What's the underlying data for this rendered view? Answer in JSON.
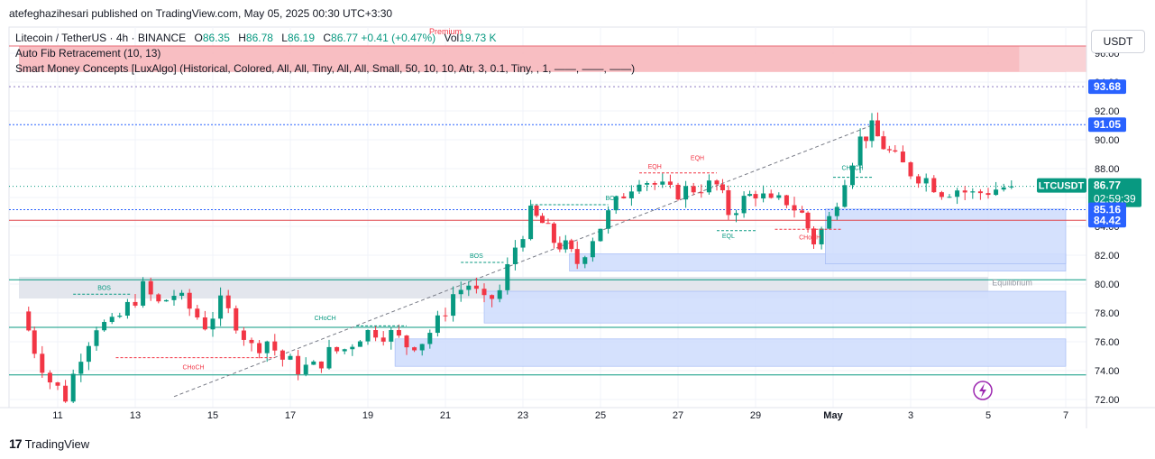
{
  "publisher": "atefeghazihesari published on TradingView.com, May 05, 2025 00:30 UTC+3:30",
  "symbol": {
    "name": "Litecoin / TetherUS · 4h · BINANCE",
    "o_label": "O",
    "o": "86.35",
    "h_label": "H",
    "h": "86.78",
    "l_label": "L",
    "l": "86.19",
    "c_label": "C",
    "c": "86.77",
    "change": "+0.41 (+0.47%)",
    "vol_label": "Vol",
    "vol": "19.73 K"
  },
  "indicators": {
    "fib": "Auto Fib Retracement (10, 13)",
    "smc": "Smart Money Concepts [LuxAlgo] (Historical, Colored, All, All, Tiny, All, All, Small, 50, 10, 10, Atr, 3, 0.1, Tiny, , 1, ——, ——, ——)"
  },
  "premium_label": "Premium",
  "currency": "USDT",
  "footer": "TradingView",
  "colors": {
    "up": "#089981",
    "down": "#f23645",
    "premium_zone": "#f7b7bb",
    "demand_zone": "#d0defd",
    "equilibrium_zone": "#e0e3eb",
    "blue_label": "#2962ff"
  },
  "chart_data": {
    "type": "candlestick",
    "x_axis": {
      "ticks": [
        "11",
        "13",
        "15",
        "17",
        "19",
        "21",
        "23",
        "25",
        "27",
        "29",
        "May",
        "3",
        "5",
        "7"
      ],
      "range": [
        "Apr 10",
        "May 7"
      ]
    },
    "y_axis": {
      "range": [
        72,
        96
      ],
      "ticks": [
        "72.00",
        "74.00",
        "76.00",
        "78.00",
        "80.00",
        "82.00",
        "84.00",
        "86.00",
        "88.00",
        "90.00",
        "92.00",
        "94.00",
        "96.00"
      ],
      "price_labels": [
        {
          "name": "fib-top",
          "value": "93.68"
        },
        {
          "name": "fib-high",
          "value": "91.05"
        },
        {
          "name": "last-price",
          "value": "86.77",
          "symbol": "LTCUSDT",
          "countdown": "02:59:39"
        },
        {
          "name": "level-a",
          "value": "85.16"
        },
        {
          "name": "level-b",
          "value": "84.42"
        }
      ]
    },
    "labels": [
      "BOS",
      "BOS",
      "BOS",
      "CHoCH",
      "CHoCH",
      "CHoCH",
      "CHoCH",
      "EQH",
      "EQH",
      "EQL",
      "Equilibrium"
    ],
    "zones": [
      {
        "kind": "premium",
        "from": "Apr 10",
        "to": "May 7",
        "low": 94.7,
        "high": 96.5
      },
      {
        "kind": "equilibrium",
        "from": "Apr 10",
        "to": "May 5",
        "low": 79.0,
        "high": 80.5
      },
      {
        "kind": "demand",
        "from": "Apr 19.7",
        "to": "May 7",
        "low": 74.3,
        "high": 76.2
      },
      {
        "kind": "demand",
        "from": "Apr 22",
        "to": "May 7",
        "low": 77.3,
        "high": 79.5
      },
      {
        "kind": "demand",
        "from": "Apr 24.2",
        "to": "May 7",
        "low": 80.9,
        "high": 82.1
      },
      {
        "kind": "demand",
        "from": "Apr 30.8",
        "to": "May 7",
        "low": 81.4,
        "high": 85.2
      }
    ],
    "path": [
      [
        10.1,
        78.1
      ],
      [
        10.4,
        75.5
      ],
      [
        10.8,
        73.3
      ],
      [
        11.2,
        72.2
      ],
      [
        11.6,
        75.2
      ],
      [
        12.0,
        77.2
      ],
      [
        12.4,
        77.1
      ],
      [
        12.8,
        78.4
      ],
      [
        13.2,
        79.7
      ],
      [
        13.6,
        78.6
      ],
      [
        14.0,
        79.3
      ],
      [
        14.4,
        78.3
      ],
      [
        14.8,
        77.2
      ],
      [
        15.2,
        78.6
      ],
      [
        15.6,
        77.4
      ],
      [
        16.0,
        75.6
      ],
      [
        16.4,
        76.1
      ],
      [
        16.8,
        74.8
      ],
      [
        17.2,
        74.2
      ],
      [
        17.6,
        74.2
      ],
      [
        18.0,
        75.2
      ],
      [
        18.4,
        75.5
      ],
      [
        18.8,
        76.5
      ],
      [
        19.2,
        76.8
      ],
      [
        19.6,
        76.5
      ],
      [
        20.0,
        75.8
      ],
      [
        20.4,
        76.1
      ],
      [
        20.8,
        77.3
      ],
      [
        21.2,
        79.3
      ],
      [
        21.6,
        80.0
      ],
      [
        22.0,
        78.6
      ],
      [
        22.4,
        79.5
      ],
      [
        22.8,
        82.6
      ],
      [
        23.2,
        84.8
      ],
      [
        23.5,
        84.2
      ],
      [
        23.8,
        83.0
      ],
      [
        24.1,
        82.5
      ],
      [
        24.4,
        81.5
      ],
      [
        24.8,
        83.3
      ],
      [
        25.2,
        84.8
      ],
      [
        25.6,
        86.3
      ],
      [
        26.0,
        87.5
      ],
      [
        26.4,
        86.9
      ],
      [
        26.8,
        86.3
      ],
      [
        27.2,
        86.5
      ],
      [
        27.6,
        86.8
      ],
      [
        28.0,
        86.8
      ],
      [
        28.3,
        85.0
      ],
      [
        28.7,
        85.8
      ],
      [
        29.0,
        86.4
      ],
      [
        29.4,
        85.5
      ],
      [
        29.8,
        85.8
      ],
      [
        30.2,
        84.8
      ],
      [
        30.5,
        83.0
      ],
      [
        30.9,
        84.5
      ],
      [
        31.3,
        87.5
      ],
      [
        31.7,
        90.0
      ],
      [
        32.0,
        90.7
      ],
      [
        32.3,
        89.6
      ],
      [
        32.6,
        88.6
      ],
      [
        33.0,
        87.8
      ],
      [
        33.4,
        87.3
      ],
      [
        33.8,
        86.5
      ],
      [
        34.2,
        86.6
      ],
      [
        34.6,
        86.2
      ],
      [
        35.0,
        86.5
      ],
      [
        35.4,
        86.7
      ],
      [
        35.6,
        86.77
      ]
    ]
  }
}
